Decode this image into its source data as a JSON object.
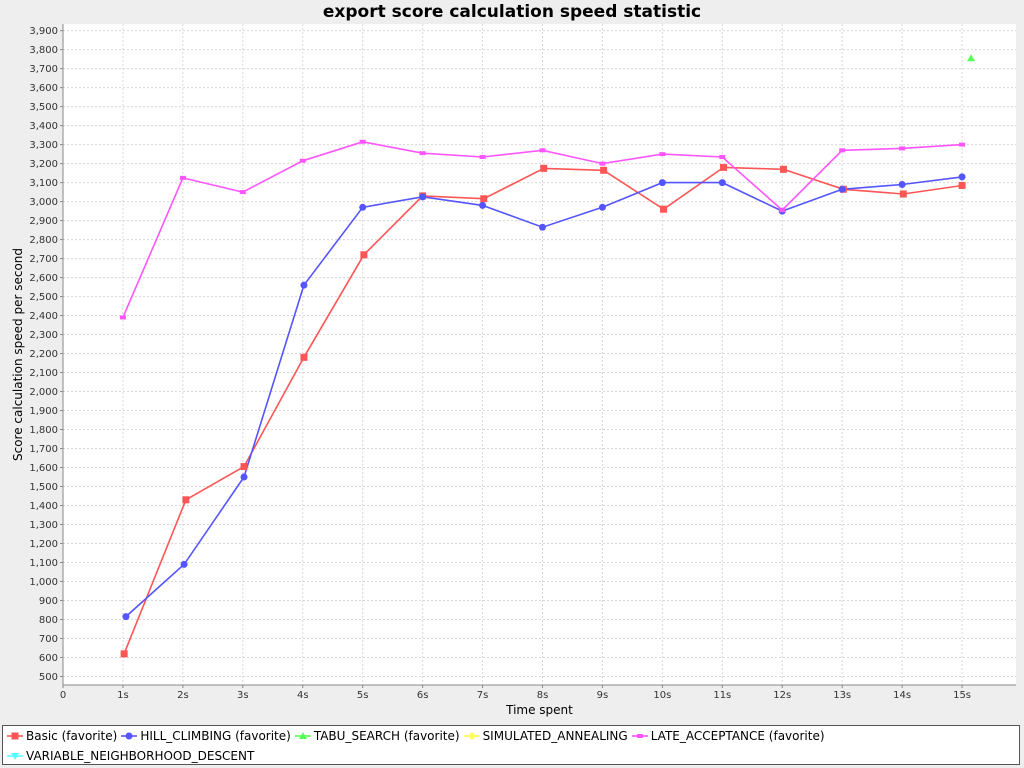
{
  "chart_data": {
    "type": "line",
    "title": "export score calculation speed statistic",
    "xlabel": "Time spent",
    "ylabel": "Score calculation speed per second",
    "x_ticks": [
      "0",
      "1s",
      "2s",
      "3s",
      "4s",
      "5s",
      "6s",
      "7s",
      "8s",
      "9s",
      "10s",
      "11s",
      "12s",
      "13s",
      "14s",
      "15s"
    ],
    "y_ticks": [
      "500",
      "600",
      "700",
      "800",
      "900",
      "1,000",
      "1,100",
      "1,200",
      "1,300",
      "1,400",
      "1,500",
      "1,600",
      "1,700",
      "1,800",
      "1,900",
      "2,000",
      "2,100",
      "2,200",
      "2,300",
      "2,400",
      "2,500",
      "2,600",
      "2,700",
      "2,800",
      "2,900",
      "3,000",
      "3,100",
      "3,200",
      "3,300",
      "3,400",
      "3,500",
      "3,600",
      "3,700",
      "3,800",
      "3,900"
    ],
    "xlim": [
      0,
      15.9
    ],
    "ylim": [
      455,
      3935
    ],
    "grid": true,
    "legend_position": "bottom",
    "series": [
      {
        "name": "Basic (favorite)",
        "color": "#ff5555",
        "marker": "square",
        "points": [
          [
            1.02,
            619
          ],
          [
            2.05,
            1430
          ],
          [
            3.02,
            1605
          ],
          [
            4.02,
            2180
          ],
          [
            5.02,
            2720
          ],
          [
            6.0,
            3030
          ],
          [
            7.02,
            3015
          ],
          [
            8.02,
            3175
          ],
          [
            9.02,
            3165
          ],
          [
            10.02,
            2960
          ],
          [
            11.02,
            3180
          ],
          [
            12.02,
            3170
          ],
          [
            13.02,
            3065
          ],
          [
            14.02,
            3040
          ],
          [
            15.0,
            3085
          ]
        ]
      },
      {
        "name": "HILL_CLIMBING (favorite)",
        "color": "#5555ff",
        "marker": "circle",
        "points": [
          [
            1.05,
            815
          ],
          [
            2.02,
            1090
          ],
          [
            3.02,
            1550
          ],
          [
            4.02,
            2560
          ],
          [
            5.0,
            2970
          ],
          [
            6.0,
            3025
          ],
          [
            7.0,
            2980
          ],
          [
            8.0,
            2865
          ],
          [
            9.0,
            2970
          ],
          [
            10.0,
            3100
          ],
          [
            11.0,
            3100
          ],
          [
            12.0,
            2950
          ],
          [
            13.0,
            3065
          ],
          [
            14.0,
            3090
          ],
          [
            15.0,
            3130
          ]
        ]
      },
      {
        "name": "TABU_SEARCH (favorite)",
        "color": "#55ff55",
        "marker": "triangle",
        "points": [
          [
            15.15,
            3755
          ]
        ]
      },
      {
        "name": "SIMULATED_ANNEALING",
        "color": "#ffff55",
        "marker": "diamond",
        "points": []
      },
      {
        "name": "LATE_ACCEPTANCE (favorite)",
        "color": "#ff55ff",
        "marker": "small-square",
        "points": [
          [
            1.0,
            2390
          ],
          [
            2.0,
            3125
          ],
          [
            3.0,
            3050
          ],
          [
            4.0,
            3215
          ],
          [
            5.0,
            3315
          ],
          [
            6.0,
            3255
          ],
          [
            7.0,
            3235
          ],
          [
            8.0,
            3270
          ],
          [
            9.0,
            3200
          ],
          [
            10.0,
            3250
          ],
          [
            11.0,
            3235
          ],
          [
            12.0,
            2955
          ],
          [
            13.0,
            3270
          ],
          [
            14.0,
            3280
          ],
          [
            15.0,
            3300
          ]
        ]
      },
      {
        "name": "VARIABLE_NEIGHBORHOOD_DESCENT",
        "color": "#55ffff",
        "marker": "down-triangle",
        "points": []
      }
    ]
  },
  "colors": {
    "background": "#eeeeee",
    "plot_background": "#ffffff",
    "grid": "#d8d8d8"
  }
}
